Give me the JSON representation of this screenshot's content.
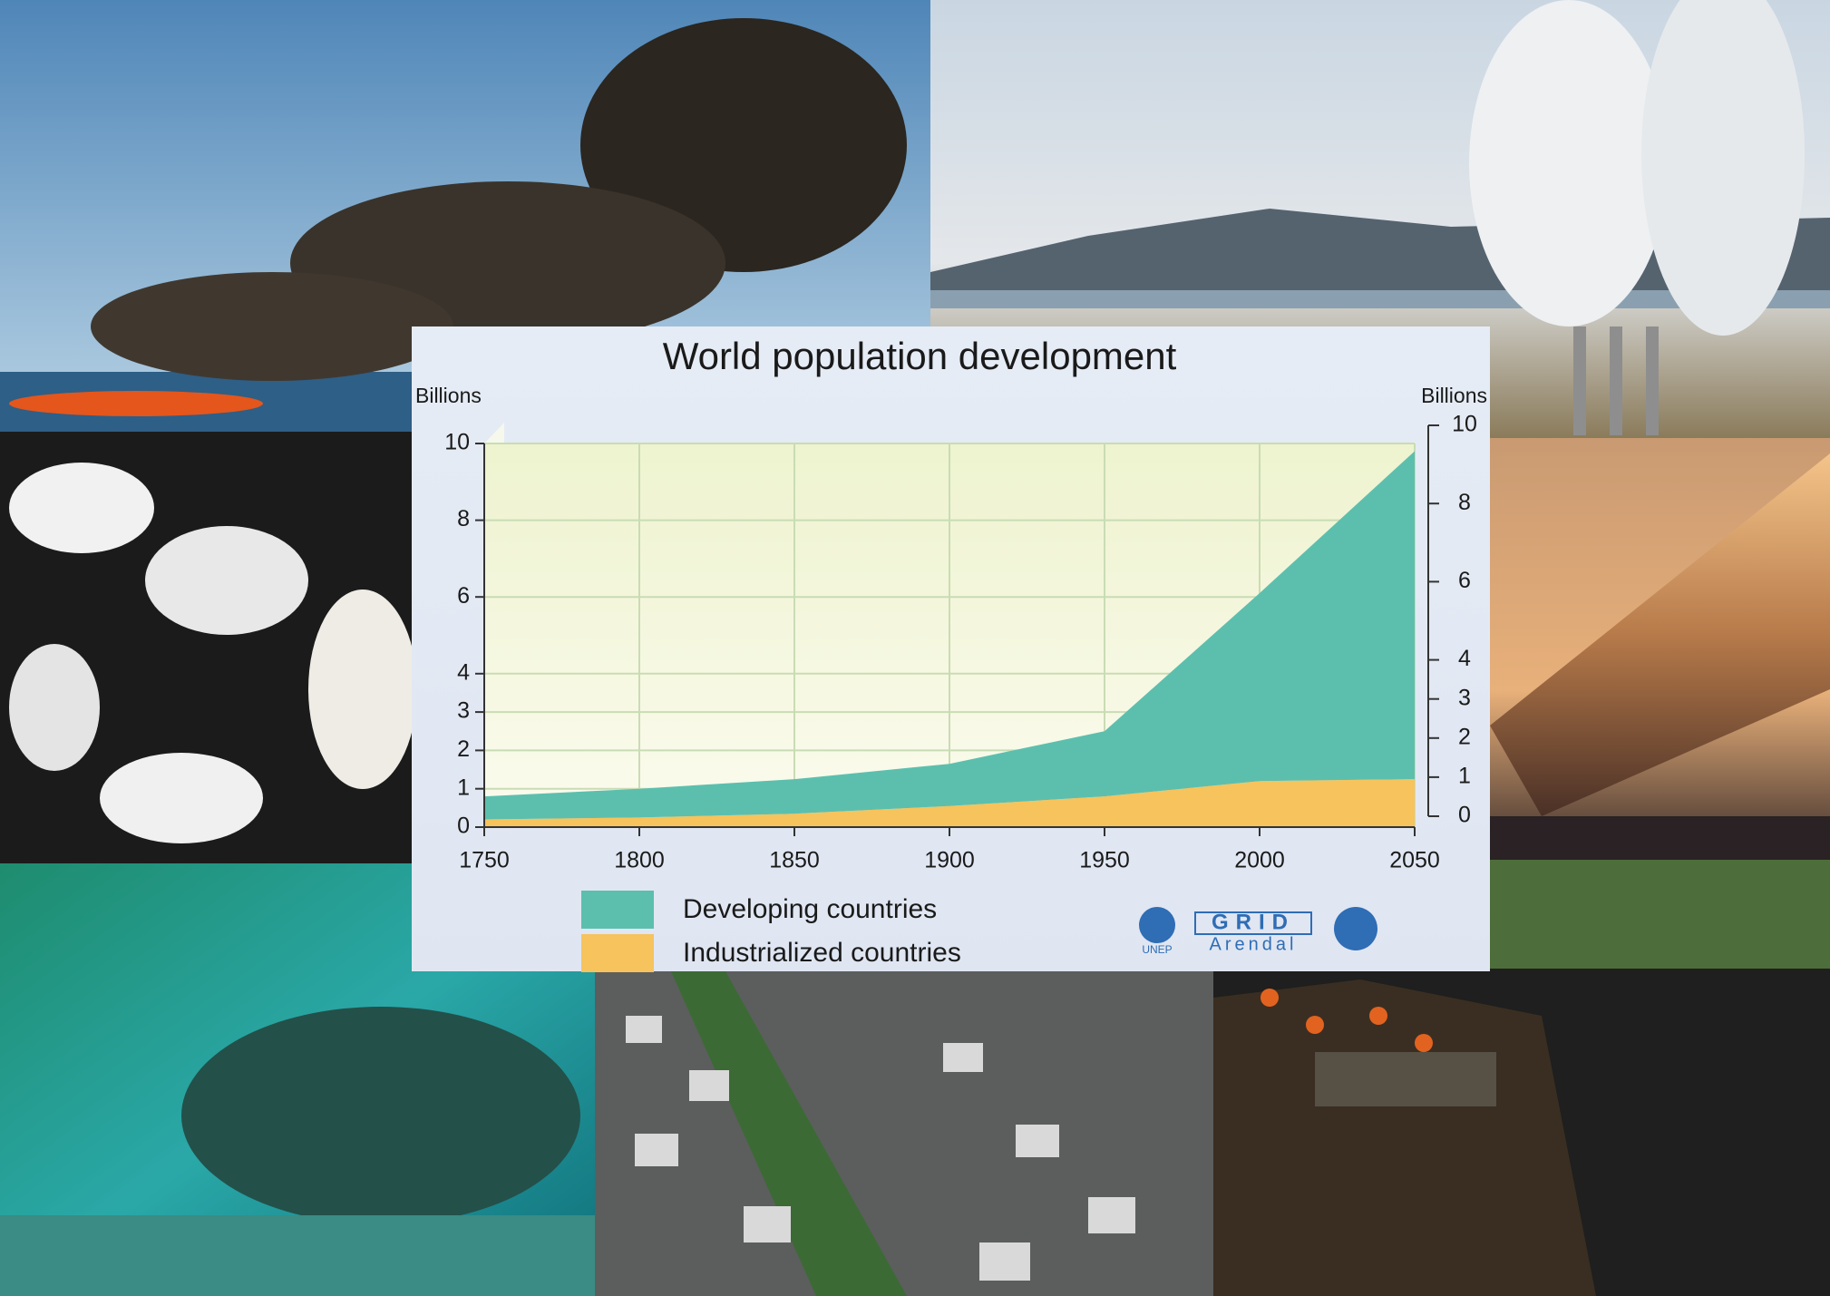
{
  "chart_data": {
    "type": "area",
    "stacked": true,
    "title": "World population development",
    "y_label": "Billions",
    "y2_label": "Billions",
    "x": [
      1750,
      1800,
      1850,
      1900,
      1950,
      2000,
      2050
    ],
    "xlim": [
      1750,
      2050
    ],
    "xticks": [
      1750,
      1800,
      1850,
      1900,
      1950,
      2000,
      2050
    ],
    "ylim": [
      0,
      10
    ],
    "yticks": [
      0,
      1,
      2,
      3,
      4,
      6,
      8,
      10
    ],
    "y2lim": [
      0,
      10
    ],
    "y2ticks": [
      0,
      1,
      2,
      3,
      4,
      6,
      8,
      10
    ],
    "grid": true,
    "series": [
      {
        "name": "Industrialized countries",
        "color": "#f6c35c",
        "values": [
          0.2,
          0.25,
          0.35,
          0.55,
          0.8,
          1.2,
          1.25
        ]
      },
      {
        "name": "Developing countries",
        "color": "#5cbfae",
        "values": [
          0.6,
          0.75,
          0.9,
          1.1,
          1.7,
          4.9,
          8.55
        ]
      }
    ],
    "credits": [
      "UNEP",
      "GRID",
      "Arendal"
    ]
  }
}
